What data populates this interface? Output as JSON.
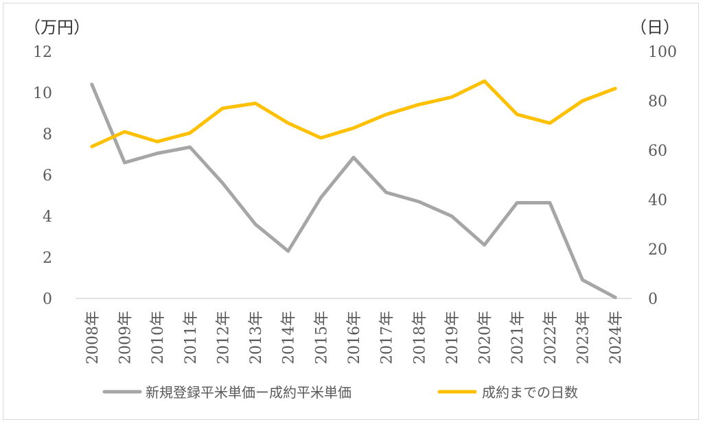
{
  "chart_data": {
    "type": "line",
    "categories": [
      "2008年",
      "2009年",
      "2010年",
      "2011年",
      "2012年",
      "2013年",
      "2014年",
      "2015年",
      "2016年",
      "2017年",
      "2018年",
      "2019年",
      "2020年",
      "2021年",
      "2022年",
      "2023年",
      "2024年"
    ],
    "left_axis": {
      "unit_label": "（万円）",
      "ylim": [
        0,
        12
      ],
      "ticks": [
        "0",
        "2",
        "4",
        "6",
        "8",
        "10",
        "12"
      ]
    },
    "right_axis": {
      "unit_label": "（日）",
      "ylim": [
        0,
        100
      ],
      "ticks": [
        "0",
        "20",
        "40",
        "60",
        "80",
        "100"
      ]
    },
    "series": [
      {
        "name": "新規登録平米単価ー成約平米単価",
        "axis": "left",
        "color": "#a6a6a6",
        "values": [
          10.4,
          6.6,
          7.05,
          7.35,
          5.6,
          3.6,
          2.3,
          4.9,
          6.85,
          5.15,
          4.7,
          4.0,
          2.6,
          4.65,
          4.65,
          0.9,
          0.05
        ]
      },
      {
        "name": "成約までの日数",
        "axis": "right",
        "color": "#ffc000",
        "values": [
          61.5,
          67.5,
          63.5,
          67,
          77,
          79,
          71,
          65,
          69,
          74.5,
          78.5,
          81.5,
          88,
          74.5,
          71,
          80,
          85
        ]
      }
    ],
    "grid": false,
    "legend_position": "bottom"
  }
}
